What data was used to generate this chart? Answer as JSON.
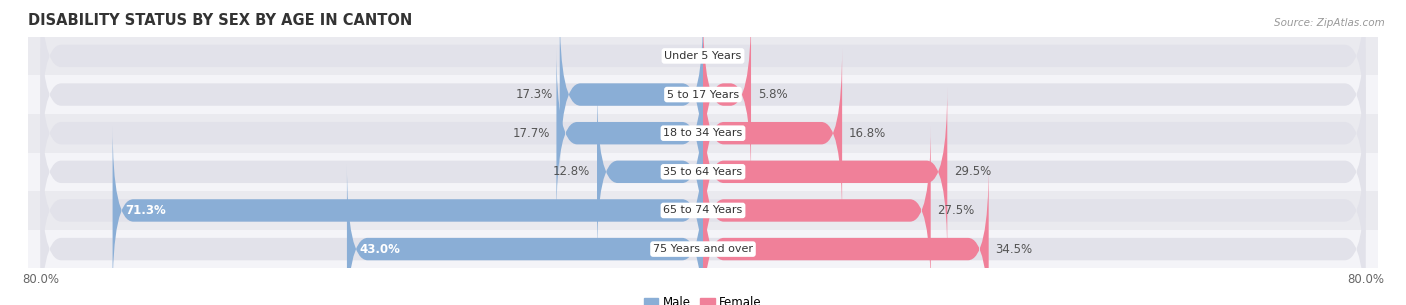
{
  "title": "DISABILITY STATUS BY SEX BY AGE IN CANTON",
  "source": "Source: ZipAtlas.com",
  "categories": [
    "Under 5 Years",
    "5 to 17 Years",
    "18 to 34 Years",
    "35 to 64 Years",
    "65 to 74 Years",
    "75 Years and over"
  ],
  "male_values": [
    0.0,
    17.3,
    17.7,
    12.8,
    71.3,
    43.0
  ],
  "female_values": [
    0.0,
    5.8,
    16.8,
    29.5,
    27.5,
    34.5
  ],
  "male_color": "#8aaed6",
  "female_color": "#f08099",
  "bar_bg_color": "#e2e2ea",
  "row_bg_odd": "#f4f4f8",
  "row_bg_even": "#eaeaef",
  "xlim_left": -80.0,
  "xlim_right": 80.0,
  "bar_height": 0.58,
  "label_fontsize": 8.5,
  "title_fontsize": 10.5,
  "category_fontsize": 8.0,
  "white_label_threshold": 40.0
}
